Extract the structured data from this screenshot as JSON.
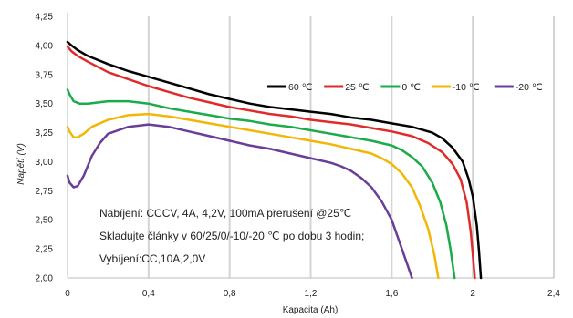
{
  "chart_data": {
    "type": "line",
    "xlabel": "Kapacita (Ah)",
    "ylabel": "Napětí (V)",
    "xlim": [
      0,
      2.4
    ],
    "ylim": [
      2.0,
      4.25
    ],
    "x_ticks": [
      "0",
      "0,4",
      "0,8",
      "1,2",
      "1,6",
      "2",
      "2,4"
    ],
    "y_ticks": [
      "2,00",
      "2,25",
      "2,50",
      "2,75",
      "3,00",
      "3,25",
      "3,50",
      "3,75",
      "4,00",
      "4,25"
    ],
    "grid": "vertical",
    "legend_position": "top-right",
    "annotations": [
      "Nabíjení: CCCV, 4A, 4,2V, 100mA přerušení @25℃",
      "Skladujte články v 60/25/0/-10/-20 ℃ po dobu 3 hodin;",
      "Vybíjení:CC,10A,2,0V"
    ],
    "series": [
      {
        "name": "60 ℃",
        "color": "#000000",
        "points": [
          [
            0,
            4.03
          ],
          [
            0.02,
            4.0
          ],
          [
            0.05,
            3.96
          ],
          [
            0.1,
            3.91
          ],
          [
            0.2,
            3.84
          ],
          [
            0.3,
            3.78
          ],
          [
            0.4,
            3.73
          ],
          [
            0.5,
            3.68
          ],
          [
            0.6,
            3.63
          ],
          [
            0.7,
            3.58
          ],
          [
            0.8,
            3.54
          ],
          [
            0.9,
            3.5
          ],
          [
            1.0,
            3.47
          ],
          [
            1.1,
            3.45
          ],
          [
            1.2,
            3.43
          ],
          [
            1.3,
            3.41
          ],
          [
            1.4,
            3.38
          ],
          [
            1.5,
            3.36
          ],
          [
            1.6,
            3.33
          ],
          [
            1.7,
            3.3
          ],
          [
            1.8,
            3.25
          ],
          [
            1.85,
            3.2
          ],
          [
            1.9,
            3.12
          ],
          [
            1.95,
            3.0
          ],
          [
            1.98,
            2.85
          ],
          [
            2.0,
            2.7
          ],
          [
            2.02,
            2.45
          ],
          [
            2.03,
            2.25
          ],
          [
            2.04,
            2.0
          ]
        ]
      },
      {
        "name": "25 ℃",
        "color": "#e02b2b",
        "points": [
          [
            0,
            3.99
          ],
          [
            0.02,
            3.95
          ],
          [
            0.05,
            3.91
          ],
          [
            0.1,
            3.86
          ],
          [
            0.2,
            3.77
          ],
          [
            0.3,
            3.71
          ],
          [
            0.4,
            3.65
          ],
          [
            0.5,
            3.6
          ],
          [
            0.6,
            3.55
          ],
          [
            0.7,
            3.51
          ],
          [
            0.8,
            3.47
          ],
          [
            0.9,
            3.44
          ],
          [
            1.0,
            3.41
          ],
          [
            1.1,
            3.39
          ],
          [
            1.2,
            3.36
          ],
          [
            1.3,
            3.34
          ],
          [
            1.4,
            3.32
          ],
          [
            1.5,
            3.29
          ],
          [
            1.6,
            3.26
          ],
          [
            1.7,
            3.22
          ],
          [
            1.78,
            3.16
          ],
          [
            1.85,
            3.08
          ],
          [
            1.9,
            2.98
          ],
          [
            1.94,
            2.85
          ],
          [
            1.97,
            2.65
          ],
          [
            1.99,
            2.4
          ],
          [
            2.0,
            2.2
          ],
          [
            2.01,
            2.0
          ]
        ]
      },
      {
        "name": "0 ℃",
        "color": "#1aab4a",
        "points": [
          [
            0,
            3.62
          ],
          [
            0.01,
            3.58
          ],
          [
            0.03,
            3.52
          ],
          [
            0.06,
            3.5
          ],
          [
            0.1,
            3.5
          ],
          [
            0.2,
            3.52
          ],
          [
            0.3,
            3.52
          ],
          [
            0.4,
            3.5
          ],
          [
            0.5,
            3.46
          ],
          [
            0.6,
            3.43
          ],
          [
            0.7,
            3.4
          ],
          [
            0.8,
            3.37
          ],
          [
            0.9,
            3.35
          ],
          [
            1.0,
            3.32
          ],
          [
            1.1,
            3.3
          ],
          [
            1.2,
            3.27
          ],
          [
            1.3,
            3.24
          ],
          [
            1.4,
            3.21
          ],
          [
            1.5,
            3.18
          ],
          [
            1.6,
            3.14
          ],
          [
            1.65,
            3.1
          ],
          [
            1.7,
            3.04
          ],
          [
            1.75,
            2.96
          ],
          [
            1.8,
            2.82
          ],
          [
            1.84,
            2.65
          ],
          [
            1.87,
            2.45
          ],
          [
            1.89,
            2.25
          ],
          [
            1.91,
            2.0
          ]
        ]
      },
      {
        "name": "-10 ℃",
        "color": "#f2b705",
        "points": [
          [
            0,
            3.3
          ],
          [
            0.01,
            3.26
          ],
          [
            0.03,
            3.21
          ],
          [
            0.05,
            3.21
          ],
          [
            0.08,
            3.24
          ],
          [
            0.12,
            3.3
          ],
          [
            0.2,
            3.36
          ],
          [
            0.3,
            3.4
          ],
          [
            0.4,
            3.41
          ],
          [
            0.5,
            3.39
          ],
          [
            0.6,
            3.36
          ],
          [
            0.7,
            3.33
          ],
          [
            0.8,
            3.3
          ],
          [
            0.9,
            3.27
          ],
          [
            1.0,
            3.24
          ],
          [
            1.1,
            3.21
          ],
          [
            1.2,
            3.18
          ],
          [
            1.3,
            3.15
          ],
          [
            1.4,
            3.11
          ],
          [
            1.5,
            3.07
          ],
          [
            1.55,
            3.03
          ],
          [
            1.6,
            2.98
          ],
          [
            1.65,
            2.9
          ],
          [
            1.7,
            2.78
          ],
          [
            1.74,
            2.62
          ],
          [
            1.78,
            2.42
          ],
          [
            1.81,
            2.2
          ],
          [
            1.83,
            2.0
          ]
        ]
      },
      {
        "name": "-20 ℃",
        "color": "#6a3d9a",
        "points": [
          [
            0,
            2.88
          ],
          [
            0.01,
            2.82
          ],
          [
            0.03,
            2.78
          ],
          [
            0.05,
            2.79
          ],
          [
            0.08,
            2.88
          ],
          [
            0.12,
            3.05
          ],
          [
            0.16,
            3.16
          ],
          [
            0.2,
            3.24
          ],
          [
            0.3,
            3.3
          ],
          [
            0.4,
            3.32
          ],
          [
            0.5,
            3.3
          ],
          [
            0.6,
            3.26
          ],
          [
            0.7,
            3.22
          ],
          [
            0.8,
            3.18
          ],
          [
            0.9,
            3.14
          ],
          [
            1.0,
            3.11
          ],
          [
            1.1,
            3.07
          ],
          [
            1.2,
            3.03
          ],
          [
            1.3,
            2.99
          ],
          [
            1.35,
            2.96
          ],
          [
            1.4,
            2.92
          ],
          [
            1.45,
            2.86
          ],
          [
            1.5,
            2.78
          ],
          [
            1.55,
            2.66
          ],
          [
            1.6,
            2.5
          ],
          [
            1.64,
            2.3
          ],
          [
            1.68,
            2.1
          ],
          [
            1.7,
            2.0
          ]
        ]
      }
    ]
  }
}
